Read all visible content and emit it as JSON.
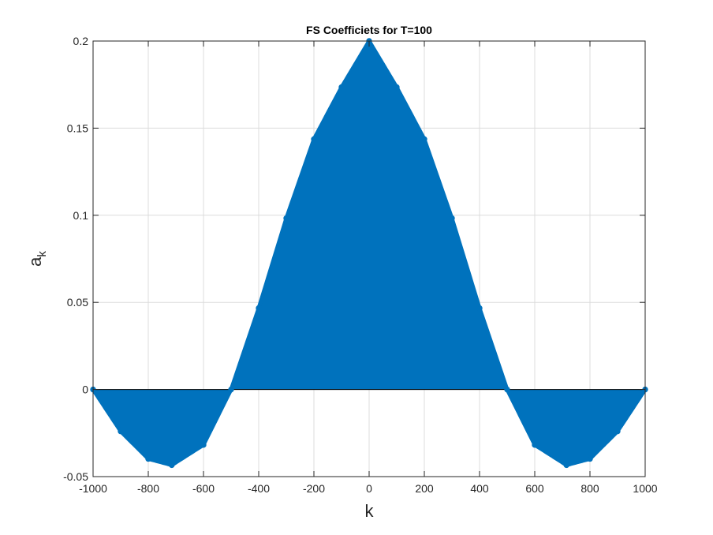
{
  "chart_data": {
    "type": "stem",
    "title": "FS Coefficiets for T=100",
    "xlabel": "k",
    "ylabel": "a",
    "ylabel_subscript": "k",
    "xlim": [
      -1000,
      1000
    ],
    "ylim": [
      -0.05,
      0.2
    ],
    "xticks": [
      -1000,
      -800,
      -600,
      -400,
      -200,
      0,
      200,
      400,
      600,
      800,
      1000
    ],
    "xtick_labels": [
      "-1000",
      "-800",
      "-600",
      "-400",
      "-200",
      "0",
      "200",
      "400",
      "600",
      "800",
      "1000"
    ],
    "yticks": [
      -0.05,
      0,
      0.05,
      0.1,
      0.15,
      0.2
    ],
    "ytick_labels": [
      "-0.05",
      "0",
      "0.05",
      "0.1",
      "0.15",
      "0.2"
    ],
    "grid": true,
    "series_color": "#0072BD",
    "series": [
      {
        "x": [
          -1000,
          -900,
          -800,
          -715,
          -600,
          -500,
          -400,
          -300,
          -200,
          -100,
          0,
          100,
          200,
          300,
          400,
          500,
          600,
          715,
          800,
          900,
          1000
        ],
        "values": [
          0,
          -0.024,
          -0.0398,
          -0.0434,
          -0.0318,
          0,
          0.0467,
          0.0983,
          0.1437,
          0.1735,
          0.2,
          0.1735,
          0.1437,
          0.0983,
          0.0467,
          0,
          -0.0318,
          -0.0434,
          -0.0398,
          -0.024,
          0
        ]
      }
    ]
  }
}
